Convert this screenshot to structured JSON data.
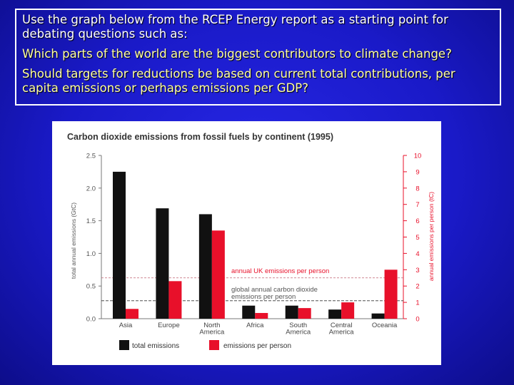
{
  "intro_text": "Use the graph below from the RCEP Energy report as a starting point for debating questions such as:",
  "question_1": "Which parts of the world are the biggest contributors to climate change?",
  "question_2": "Should targets for reductions be based on current total contributions, per capita emissions or perhaps emissions per GDP?",
  "colors": {
    "slide_background": "#1a1ac8",
    "question_text": "#ffffa0",
    "total_series": "#111111",
    "per_person_series": "#e8102a"
  },
  "chart_data": {
    "type": "bar",
    "title": "Carbon dioxide emissions from fossil fuels by continent (1995)",
    "categories": [
      "Asia",
      "Europe",
      "North America",
      "Africa",
      "South America",
      "Central America",
      "Oceania"
    ],
    "category_lines": [
      [
        "Asia"
      ],
      [
        "Europe"
      ],
      [
        "North",
        "America"
      ],
      [
        "Africa"
      ],
      [
        "South",
        "America"
      ],
      [
        "Central",
        "America"
      ],
      [
        "Oceania"
      ]
    ],
    "series": [
      {
        "name": "total emissions",
        "axis": "left",
        "color": "#111111",
        "values": [
          2.25,
          1.69,
          1.6,
          0.2,
          0.2,
          0.14,
          0.08
        ]
      },
      {
        "name": "emissions per person",
        "axis": "right",
        "color": "#e8102a",
        "values": [
          0.6,
          2.3,
          5.4,
          0.35,
          0.65,
          1.0,
          3.0
        ]
      }
    ],
    "left_axis": {
      "label": "total annual emissions (GtC)",
      "ylim": [
        0,
        2.5
      ],
      "ticks": [
        0.0,
        0.5,
        1.0,
        1.5,
        2.0,
        2.5
      ],
      "tick_labels": [
        "0.0",
        "0.5",
        "1.0",
        "1.5",
        "2.0",
        "2.5"
      ]
    },
    "right_axis": {
      "label": "annual emissions per person (tC)",
      "ylim": [
        0,
        10
      ],
      "ticks": [
        0,
        1,
        2,
        3,
        4,
        5,
        6,
        7,
        8,
        9,
        10
      ],
      "tick_labels": [
        "0",
        "1",
        "2",
        "3",
        "4",
        "5",
        "6",
        "7",
        "8",
        "9",
        "10"
      ]
    },
    "reference_lines": [
      {
        "label": "annual UK emissions per person",
        "axis": "right",
        "value": 2.5,
        "style": "dashed",
        "color": "#e8102a"
      },
      {
        "label_lines": [
          "global annual carbon dioxide",
          "emissions per person"
        ],
        "axis": "right",
        "value": 1.1,
        "style": "dashed",
        "color": "#333333"
      }
    ],
    "grid": false,
    "legend_position": "bottom"
  }
}
